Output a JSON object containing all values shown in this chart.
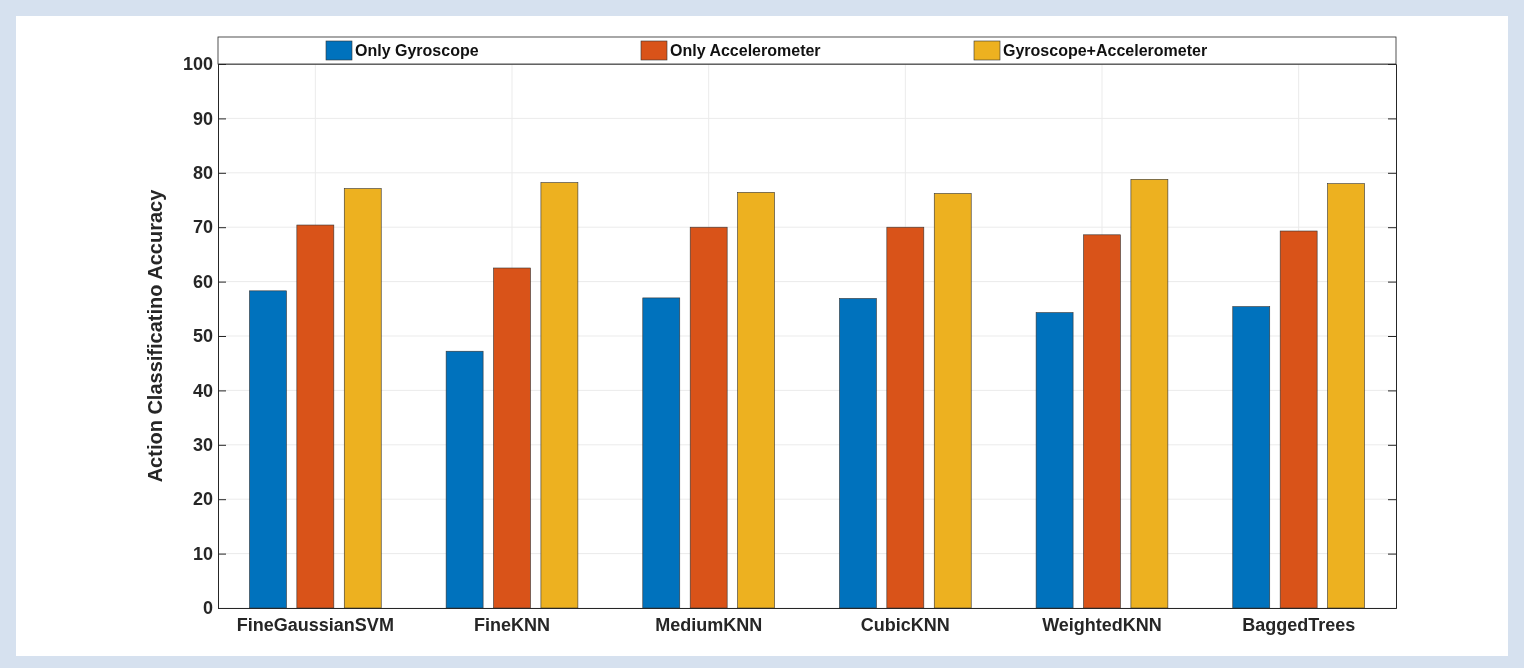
{
  "chart_data": {
    "type": "bar",
    "ylabel": "Action Classificatino Accuracy",
    "categories": [
      "FineGaussianSVM",
      "FineKNN",
      "MediumKNN",
      "CubicKNN",
      "WeightedKNN",
      "BaggedTrees"
    ],
    "series": [
      {
        "name": "Only Gyroscope",
        "color": "#0072bd",
        "values": [
          58.3,
          47.2,
          57.0,
          56.9,
          54.3,
          55.4
        ]
      },
      {
        "name": "Only Accelerometer",
        "color": "#d95319",
        "values": [
          70.4,
          62.5,
          70.0,
          70.0,
          68.6,
          69.3
        ]
      },
      {
        "name": "Gyroscope+Accelerometer",
        "color": "#edb120",
        "values": [
          77.1,
          78.2,
          76.4,
          76.2,
          78.8,
          78.0
        ]
      }
    ],
    "ylim": [
      0,
      100
    ],
    "yticks": [
      0,
      10,
      20,
      30,
      40,
      50,
      60,
      70,
      80,
      90,
      100
    ],
    "grid": true,
    "legend": "top"
  }
}
